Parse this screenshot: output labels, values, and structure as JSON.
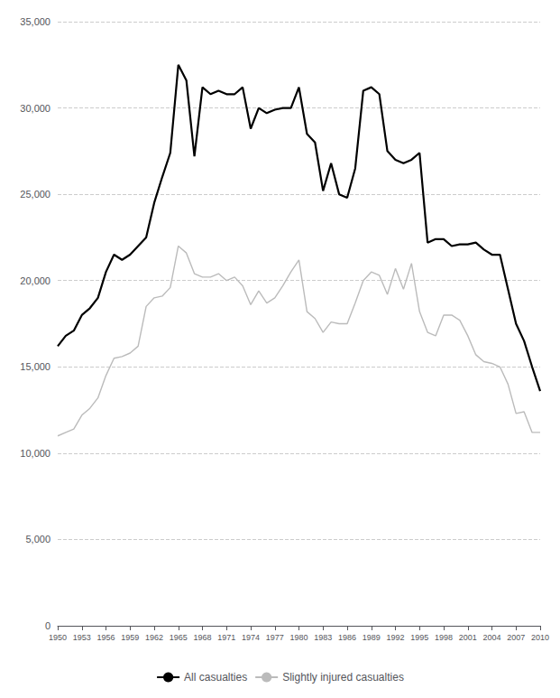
{
  "chart_data": {
    "type": "line",
    "x": [
      1950,
      1951,
      1952,
      1953,
      1954,
      1955,
      1956,
      1957,
      1958,
      1959,
      1960,
      1961,
      1962,
      1963,
      1964,
      1965,
      1966,
      1967,
      1968,
      1969,
      1970,
      1971,
      1972,
      1973,
      1974,
      1975,
      1976,
      1977,
      1978,
      1979,
      1980,
      1981,
      1982,
      1983,
      1984,
      1985,
      1986,
      1987,
      1988,
      1989,
      1990,
      1991,
      1992,
      1993,
      1994,
      1995,
      1996,
      1997,
      1998,
      1999,
      2000,
      2001,
      2002,
      2003,
      2004,
      2005,
      2006,
      2007,
      2008,
      2009,
      2010
    ],
    "series": [
      {
        "name": "All casualties",
        "color": "#000000",
        "values": [
          16200,
          16800,
          17100,
          18000,
          18400,
          19000,
          20500,
          21500,
          21200,
          21500,
          22000,
          22500,
          24500,
          26000,
          27400,
          32500,
          31600,
          27200,
          31200,
          30800,
          31000,
          30800,
          30800,
          31200,
          28800,
          30000,
          29700,
          29900,
          30000,
          30000,
          31200,
          28500,
          28000,
          25200,
          26800,
          25000,
          24800,
          26500,
          31000,
          31200,
          30800,
          27500,
          27000,
          26800,
          27000,
          27400,
          22200,
          22400,
          22400,
          22000,
          22100,
          22100,
          22200,
          21800,
          21500,
          21500,
          19500,
          17500,
          16500,
          15000,
          13600
        ]
      },
      {
        "name": "Slightly injured casualties",
        "color": "#bbbbbb",
        "values": [
          11000,
          11200,
          11400,
          12200,
          12600,
          13200,
          14500,
          15500,
          15600,
          15800,
          16200,
          18500,
          19000,
          19100,
          19600,
          22000,
          21600,
          20400,
          20200,
          20200,
          20400,
          20000,
          20200,
          19700,
          18600,
          19400,
          18700,
          19000,
          19700,
          20500,
          21200,
          18200,
          17800,
          17000,
          17600,
          17500,
          17500,
          18700,
          20000,
          20500,
          20300,
          19200,
          20700,
          19500,
          21000,
          18200,
          17000,
          16800,
          18000,
          18000,
          17700,
          16800,
          15700,
          15300,
          15200,
          15000,
          14000,
          12300,
          12400,
          11200,
          11200
        ]
      }
    ],
    "xlim": [
      1950,
      2010
    ],
    "xticks": [
      1950,
      1953,
      1956,
      1959,
      1962,
      1965,
      1968,
      1971,
      1974,
      1977,
      1980,
      1983,
      1986,
      1989,
      1992,
      1995,
      1998,
      2001,
      2004,
      2007,
      2010
    ],
    "ylim": [
      0,
      35000
    ],
    "yticks": [
      0,
      {
        "value": 5000,
        "label": "5,000"
      },
      {
        "value": 10000,
        "label": "10,000"
      },
      {
        "value": 15000,
        "label": "15,000"
      },
      {
        "value": 20000,
        "label": "20,000"
      },
      {
        "value": 25000,
        "label": "25,000"
      },
      {
        "value": 30000,
        "label": "30,000"
      },
      {
        "value": 35000,
        "label": "35,000"
      }
    ],
    "grid": true,
    "legend": "bottom"
  }
}
